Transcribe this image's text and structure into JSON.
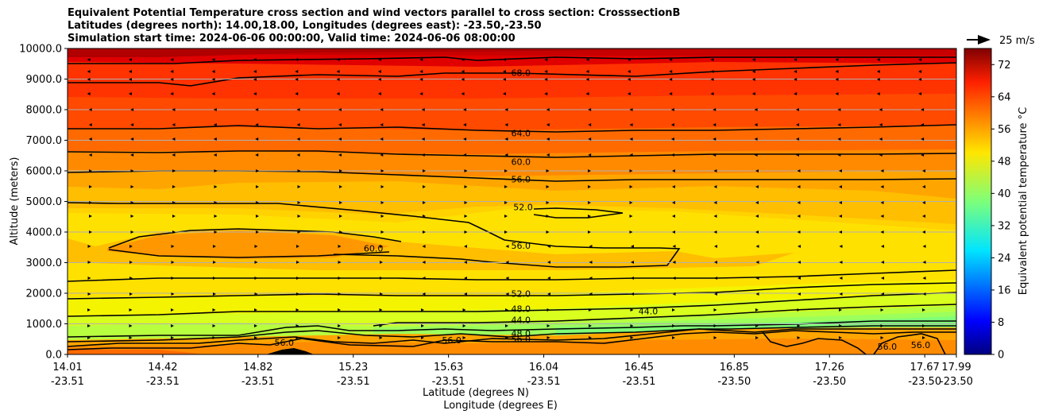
{
  "chart_data": {
    "type": "contour",
    "title_lines": [
      "Equivalent Potential Temperature cross section and wind vectors parallel to cross section: CrosssectionB",
      "Latitudes (degrees north): 14.00,18.00, Longitudes (degrees east): -23.50,-23.50",
      "Simulation start time: 2024-06-06 00:00:00, Valid time: 2024-06-06 08:00:00"
    ],
    "ylabel": "Altitude (meters)",
    "xlabel": "Latitude (degrees N)",
    "xlabel2": "Longitude (degrees E)",
    "ylim": [
      0,
      10000
    ],
    "y_ticks": [
      "0.0",
      "1000.0",
      "2000.0",
      "3000.0",
      "4000.0",
      "5000.0",
      "6000.0",
      "7000.0",
      "8000.0",
      "9000.0",
      "10000.0"
    ],
    "x_ticks": [
      {
        "lat": "14.01",
        "lon": "-23.51"
      },
      {
        "lat": "14.42",
        "lon": "-23.51"
      },
      {
        "lat": "14.82",
        "lon": "-23.51"
      },
      {
        "lat": "15.23",
        "lon": "-23.51"
      },
      {
        "lat": "15.63",
        "lon": "-23.51"
      },
      {
        "lat": "16.04",
        "lon": "-23.51"
      },
      {
        "lat": "16.45",
        "lon": "-23.51"
      },
      {
        "lat": "16.85",
        "lon": "-23.50"
      },
      {
        "lat": "17.26",
        "lon": "-23.50"
      },
      {
        "lat": "17.67",
        "lon": "-23.50"
      },
      {
        "lat": "17.99",
        "lon": "-23.50"
      }
    ],
    "grid": true,
    "colorbar": {
      "label": "Equivalent potential temperature $^\\circ$C",
      "label_text": "Equivalent potential temperature °C",
      "range": [
        0,
        76
      ],
      "ticks": [
        "0",
        "8",
        "16",
        "24",
        "32",
        "40",
        "48",
        "56",
        "64",
        "72"
      ],
      "colormap": "jet"
    },
    "contour_labels": [
      {
        "text": "68.0",
        "lat": 16.04,
        "alt": 9200
      },
      {
        "text": "64.0",
        "lat": 16.04,
        "alt": 7220
      },
      {
        "text": "60.0",
        "lat": 16.04,
        "alt": 6280
      },
      {
        "text": "56.0",
        "lat": 16.04,
        "alt": 5720
      },
      {
        "text": "52.0",
        "lat": 16.05,
        "alt": 4800
      },
      {
        "text": "60.0",
        "lat": 15.38,
        "alt": 3450
      },
      {
        "text": "56.0",
        "lat": 16.04,
        "alt": 3550
      },
      {
        "text": "52.0",
        "lat": 16.04,
        "alt": 1980
      },
      {
        "text": "48.0",
        "lat": 16.04,
        "alt": 1480
      },
      {
        "text": "44.0",
        "lat": 16.04,
        "alt": 1120
      },
      {
        "text": "44.0",
        "lat": 16.61,
        "alt": 1400
      },
      {
        "text": "48.0",
        "lat": 16.04,
        "alt": 680
      },
      {
        "text": "56.0",
        "lat": 16.04,
        "alt": 500
      },
      {
        "text": "56.0",
        "lat": 15.73,
        "alt": 450
      },
      {
        "text": "56.0",
        "lat": 14.98,
        "alt": 380
      },
      {
        "text": "56.0",
        "lat": 17.68,
        "alt": 250
      },
      {
        "text": "56.0",
        "lat": 17.83,
        "alt": 300
      }
    ],
    "wind_reference": {
      "label": "25 m/s",
      "speed": 25
    }
  }
}
